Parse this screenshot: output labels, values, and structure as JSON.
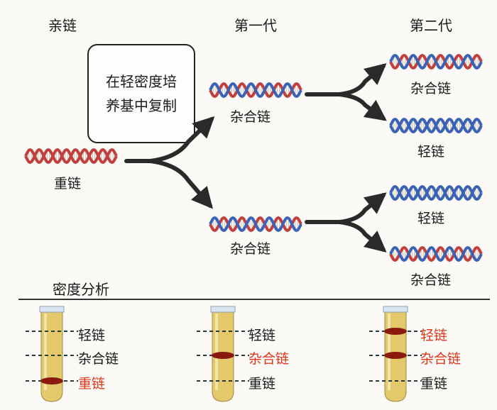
{
  "columns": {
    "parent": "亲链",
    "gen1": "第一代",
    "gen2": "第二代"
  },
  "condition_box": {
    "line1": "在轻密度培",
    "line2": "养基中复制"
  },
  "dna_labels": {
    "parent": "重链",
    "gen1_top": "杂合链",
    "gen1_bottom": "杂合链",
    "gen2_1": "杂合链",
    "gen2_2": "轻链",
    "gen2_3": "轻链",
    "gen2_4": "杂合链"
  },
  "density_section": {
    "title": "密度分析",
    "tubes": [
      {
        "light": "轻链",
        "hybrid": "杂合链",
        "heavy": "重链",
        "band": "heavy"
      },
      {
        "light": "轻链",
        "hybrid": "杂合链",
        "heavy": "重链",
        "band": "hybrid"
      },
      {
        "light": "轻链",
        "hybrid": "杂合链",
        "heavy": "重链",
        "band": "light+hybrid"
      }
    ]
  },
  "colors": {
    "heavy_strand": "#c0403e",
    "light_strand": "#3a62b5",
    "band": "#8a1a10",
    "highlight_text": "#d9381e",
    "tube_liquid": "#e3c96a"
  }
}
